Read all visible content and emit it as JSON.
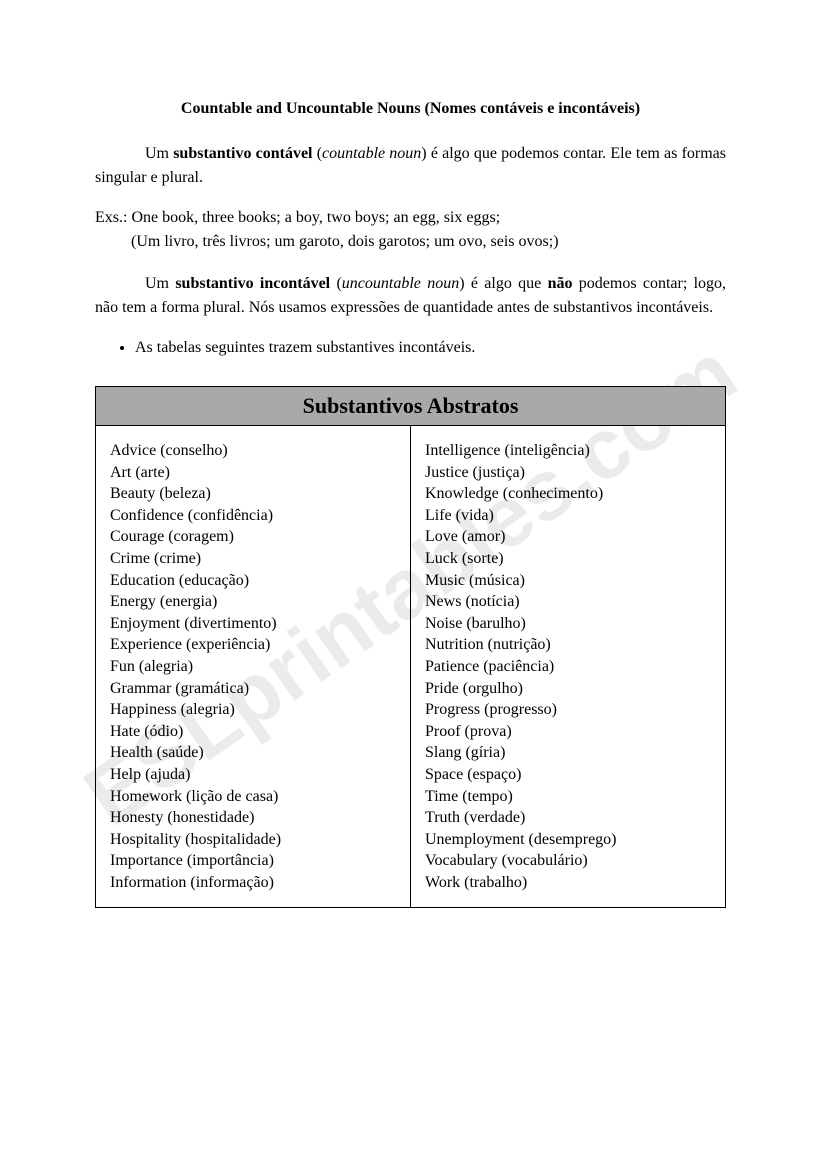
{
  "watermark": "ESLprintables.com",
  "title": "Countable and Uncountable Nouns (Nomes contáveis e incontáveis)",
  "para1_prefix": "Um ",
  "para1_bold": "substantivo contável",
  "para1_open": " (",
  "para1_italic": "countable noun",
  "para1_rest": ") é algo que podemos contar. Ele tem as formas singular e plural.",
  "examples_line1": "Exs.: One book, three books; a boy, two boys; an egg, six eggs;",
  "examples_line2": "(Um livro, três livros; um garoto, dois garotos; um ovo, seis ovos;)",
  "para2_prefix": "Um ",
  "para2_bold1": "substantivo incontável",
  "para2_open": " (",
  "para2_italic": "uncountable noun",
  "para2_mid": ") é algo que ",
  "para2_bold2": "não",
  "para2_rest": " podemos contar; logo, não tem a forma plural. Nós usamos expressões de quantidade antes de substantivos incontáveis.",
  "bullet1": "As tabelas seguintes trazem substantives incontáveis.",
  "table_header": "Substantivos Abstratos",
  "col1": {
    "r0": "Advice (conselho)",
    "r1": "Art (arte)",
    "r2": "Beauty (beleza)",
    "r3": "Confidence (confidência)",
    "r4": "Courage (coragem)",
    "r5": "Crime (crime)",
    "r6": "Education (educação)",
    "r7": "Energy (energia)",
    "r8": "Enjoyment (divertimento)",
    "r9": "Experience (experiência)",
    "r10": "Fun (alegria)",
    "r11": "Grammar (gramática)",
    "r12": "Happiness (alegria)",
    "r13": "Hate (ódio)",
    "r14": "Health (saúde)",
    "r15": "Help (ajuda)",
    "r16": "Homework (lição de casa)",
    "r17": "Honesty (honestidade)",
    "r18": "Hospitality (hospitalidade)",
    "r19": "Importance (importância)",
    "r20": "Information (informação)"
  },
  "col2": {
    "r0": "Intelligence (inteligência)",
    "r1": "Justice (justiça)",
    "r2": "Knowledge (conhecimento)",
    "r3": "Life (vida)",
    "r4": "Love (amor)",
    "r5": "Luck (sorte)",
    "r6": "Music (música)",
    "r7": "News (notícia)",
    "r8": "Noise (barulho)",
    "r9": "Nutrition (nutrição)",
    "r10": "Patience (paciência)",
    "r11": "Pride (orgulho)",
    "r12": "Progress (progresso)",
    "r13": "Proof (prova)",
    "r14": "Slang (gíria)",
    "r15": "Space (espaço)",
    "r16": "Time (tempo)",
    "r17": "Truth (verdade)",
    "r18": "Unemployment (desemprego)",
    "r19": "Vocabulary (vocabulário)",
    "r20": "Work (trabalho)"
  }
}
